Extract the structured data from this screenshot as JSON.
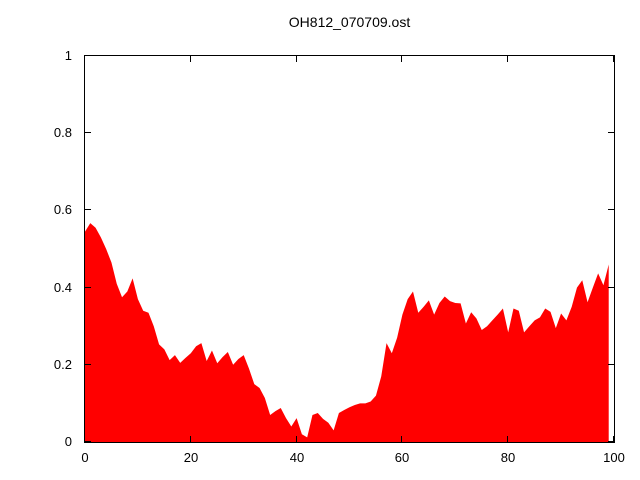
{
  "title": "OH812_070709.ost",
  "chart_data": {
    "type": "area",
    "title": "OH812_070709.ost",
    "xlabel": "",
    "ylabel": "",
    "xlim": [
      0,
      100
    ],
    "ylim": [
      0,
      1
    ],
    "xticks": [
      0,
      20,
      40,
      60,
      80,
      100
    ],
    "yticks": [
      0,
      0.2,
      0.4,
      0.6,
      0.8,
      1
    ],
    "xtick_labels": [
      "0",
      "20",
      "40",
      "60",
      "80",
      "100"
    ],
    "ytick_labels": [
      "0",
      "0.2",
      "0.4",
      "0.6",
      "0.8",
      "1"
    ],
    "grid": false,
    "legend_position": "none",
    "fill_color": "#ff0000",
    "border_color": "#000000",
    "background_color": "#ffffff",
    "series_name": "OH812_070709.ost",
    "x": [
      0,
      1,
      2,
      3,
      4,
      5,
      6,
      7,
      8,
      9,
      10,
      11,
      12,
      13,
      14,
      15,
      16,
      17,
      18,
      19,
      20,
      21,
      22,
      23,
      24,
      25,
      26,
      27,
      28,
      29,
      30,
      31,
      32,
      33,
      34,
      35,
      36,
      37,
      38,
      39,
      40,
      41,
      42,
      43,
      44,
      45,
      46,
      47,
      48,
      49,
      50,
      51,
      52,
      53,
      54,
      55,
      56,
      57,
      58,
      59,
      60,
      61,
      62,
      63,
      64,
      65,
      66,
      67,
      68,
      69,
      70,
      71,
      72,
      73,
      74,
      75,
      76,
      77,
      78,
      79,
      80,
      81,
      82,
      83,
      84,
      85,
      86,
      87,
      88,
      89,
      90,
      91,
      92,
      93,
      94,
      95,
      96,
      97,
      98,
      99
    ],
    "values": [
      0.545,
      0.567,
      0.555,
      0.53,
      0.5,
      0.465,
      0.41,
      0.375,
      0.39,
      0.424,
      0.37,
      0.34,
      0.335,
      0.3,
      0.253,
      0.24,
      0.212,
      0.225,
      0.205,
      0.218,
      0.23,
      0.248,
      0.256,
      0.21,
      0.237,
      0.204,
      0.22,
      0.233,
      0.2,
      0.215,
      0.225,
      0.19,
      0.15,
      0.14,
      0.114,
      0.07,
      0.08,
      0.088,
      0.062,
      0.04,
      0.062,
      0.02,
      0.012,
      0.07,
      0.075,
      0.06,
      0.05,
      0.03,
      0.075,
      0.083,
      0.09,
      0.096,
      0.1,
      0.1,
      0.105,
      0.12,
      0.17,
      0.256,
      0.23,
      0.27,
      0.33,
      0.37,
      0.39,
      0.335,
      0.35,
      0.367,
      0.33,
      0.36,
      0.377,
      0.365,
      0.36,
      0.359,
      0.307,
      0.336,
      0.32,
      0.29,
      0.3,
      0.315,
      0.33,
      0.346,
      0.284,
      0.346,
      0.34,
      0.284,
      0.3,
      0.315,
      0.323,
      0.346,
      0.337,
      0.295,
      0.333,
      0.315,
      0.35,
      0.4,
      0.419,
      0.362,
      0.4,
      0.437,
      0.406,
      0.46
    ]
  }
}
